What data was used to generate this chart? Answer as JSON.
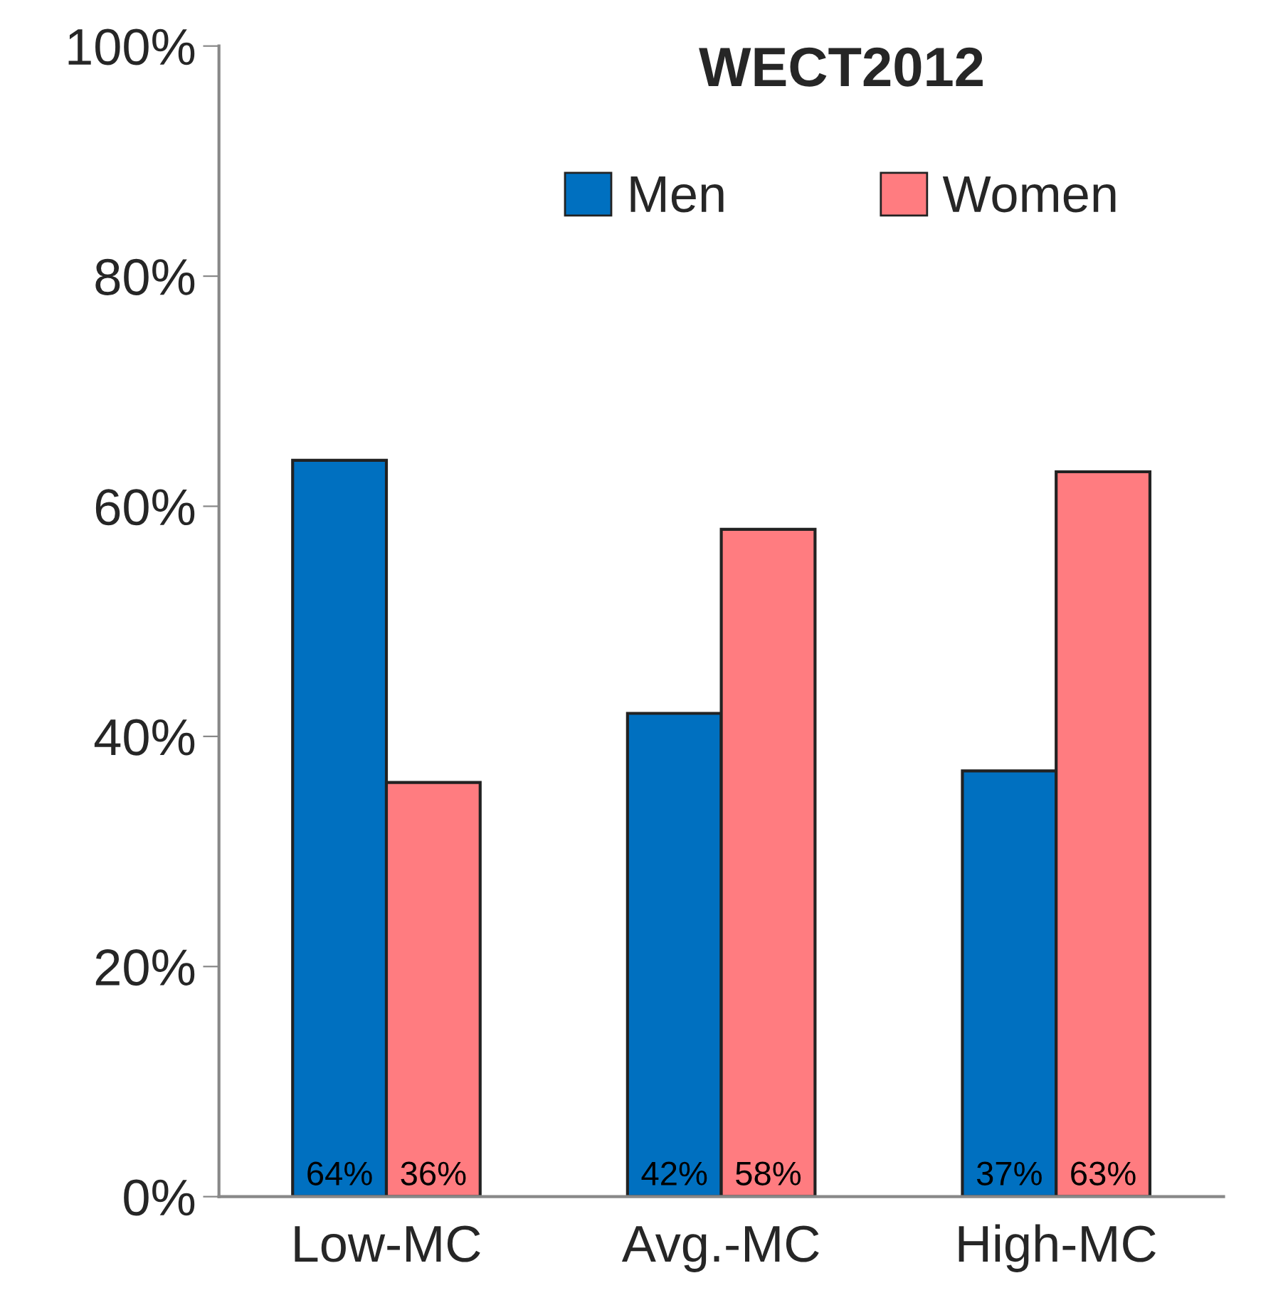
{
  "chart_data": {
    "type": "bar",
    "title": "WECT2012",
    "categories": [
      "Low-MC",
      "Avg.-MC",
      "High-MC"
    ],
    "series": [
      {
        "name": "Men",
        "color": "#0070c0",
        "values": [
          64,
          42,
          37
        ],
        "value_labels": [
          "64%",
          "42%",
          "37%"
        ]
      },
      {
        "name": "Women",
        "color": "#ff7c80",
        "values": [
          36,
          58,
          63
        ],
        "value_labels": [
          "36%",
          "58%",
          "63%"
        ]
      }
    ],
    "ylim": [
      0,
      100
    ],
    "yticks": [
      {
        "value": 0,
        "label": "0%"
      },
      {
        "value": 20,
        "label": "20%"
      },
      {
        "value": 40,
        "label": "40%"
      },
      {
        "value": 60,
        "label": "60%"
      },
      {
        "value": 80,
        "label": "80%"
      },
      {
        "value": 100,
        "label": "100%"
      }
    ],
    "grid": false,
    "legend": "top"
  }
}
